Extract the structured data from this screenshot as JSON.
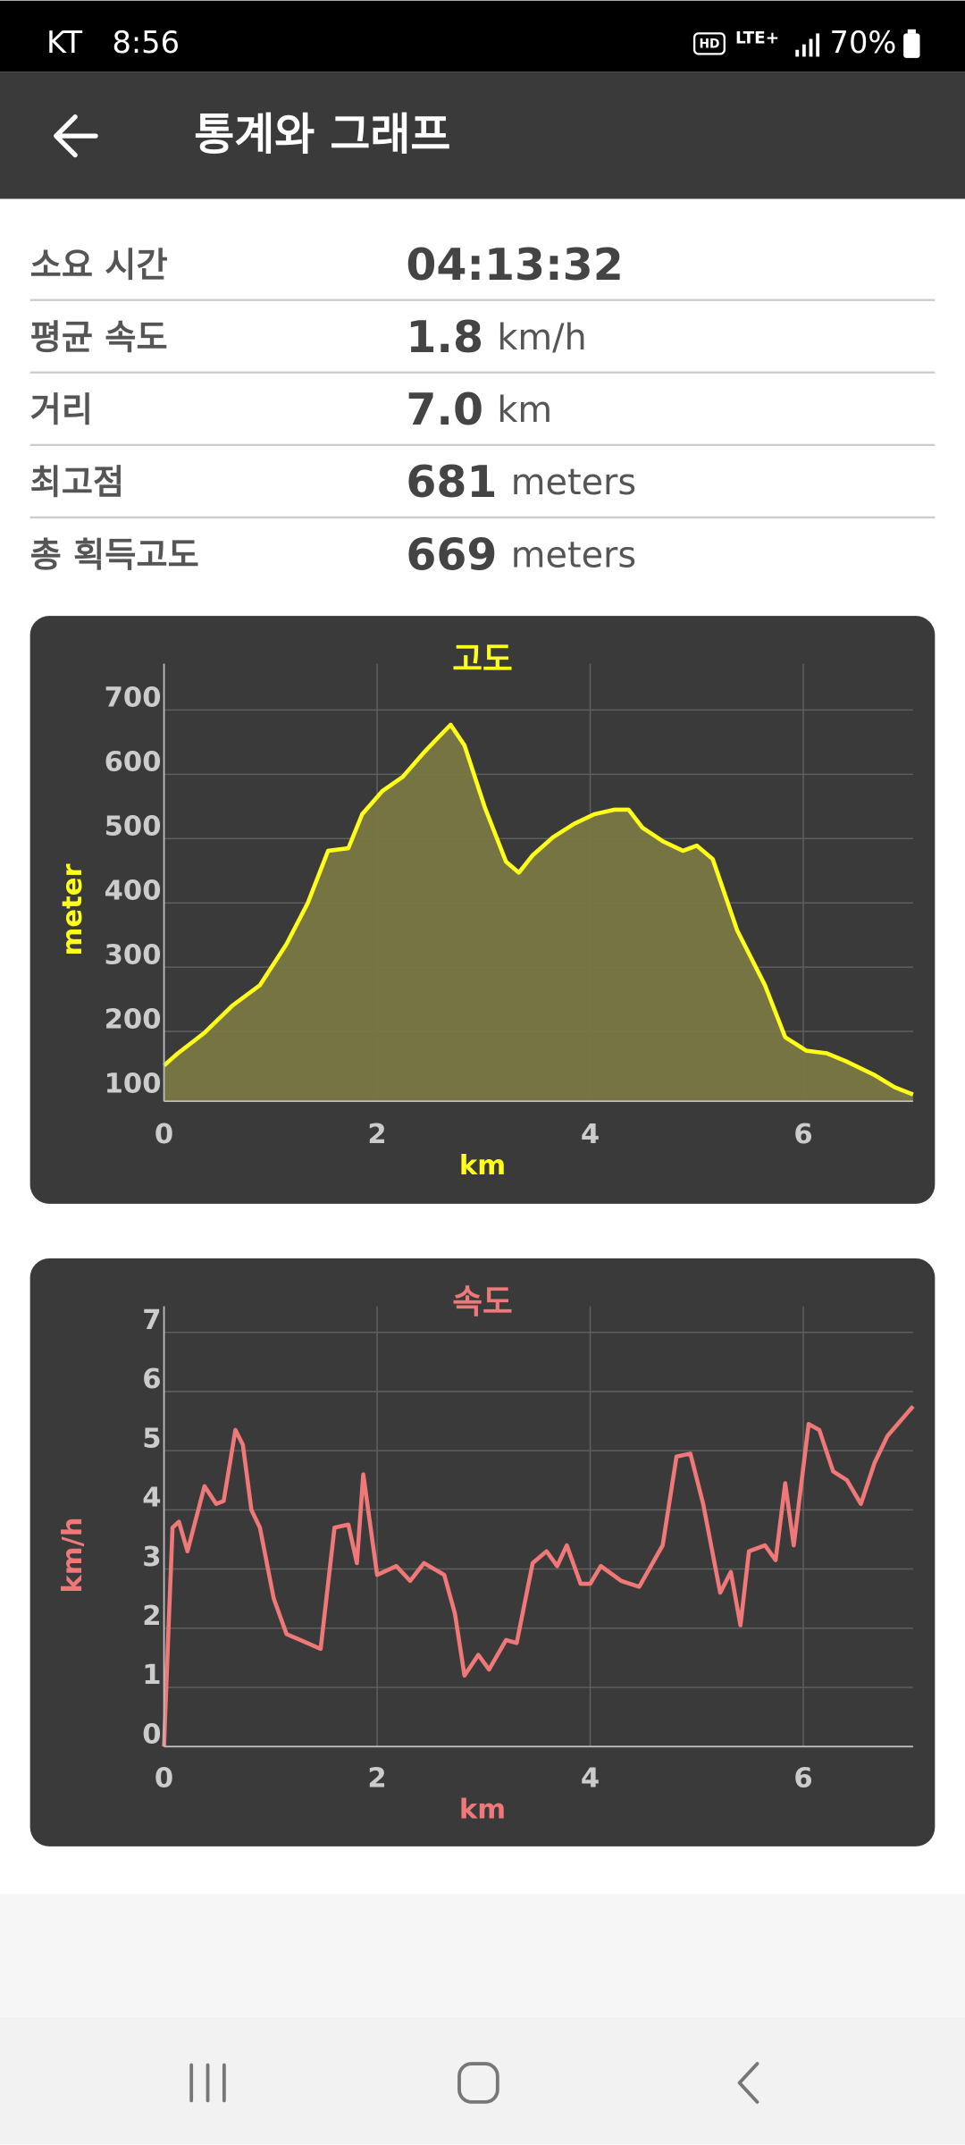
{
  "status": {
    "carrier": "KT",
    "time": "8:56",
    "hd": "HD",
    "network": "LTE+",
    "battery": "70%"
  },
  "header": {
    "title": "통계와 그래프"
  },
  "stats": [
    {
      "label": "소요 시간",
      "value": "04:13:32",
      "unit": ""
    },
    {
      "label": "평균 속도",
      "value": "1.8",
      "unit": "km/h"
    },
    {
      "label": "거리",
      "value": "7.0",
      "unit": "km"
    },
    {
      "label": "최고점",
      "value": "681",
      "unit": "meters"
    },
    {
      "label": "총 획득고도",
      "value": "669",
      "unit": "meters"
    }
  ],
  "chart_data": [
    {
      "type": "area",
      "title": "고도",
      "xlabel": "km",
      "ylabel": "meter",
      "color": "#ffff1a",
      "fill": "#7a7744",
      "x": [
        0,
        0.13,
        0.38,
        0.64,
        0.9,
        1.15,
        1.35,
        1.54,
        1.73,
        1.86,
        2.05,
        2.24,
        2.44,
        2.56,
        2.69,
        2.82,
        3.01,
        3.21,
        3.33,
        3.46,
        3.65,
        3.85,
        4.04,
        4.23,
        4.36,
        4.49,
        4.68,
        4.87,
        5.0,
        5.15,
        5.38,
        5.64,
        5.83,
        6.03,
        6.22,
        6.41,
        6.67,
        6.86,
        7.03
      ],
      "values": [
        147,
        166,
        198,
        240,
        272,
        336,
        400,
        481,
        485,
        538,
        574,
        596,
        634,
        655,
        677,
        645,
        549,
        464,
        447,
        474,
        502,
        523,
        538,
        545,
        545,
        517,
        496,
        481,
        489,
        468,
        357,
        272,
        191,
        170,
        166,
        153,
        132,
        113,
        102
      ],
      "xlim": [
        0,
        7.03
      ],
      "ylim": [
        91.5,
        772
      ],
      "xticks": [
        0,
        2,
        4,
        6
      ],
      "yticks": [
        100,
        200,
        300,
        400,
        500,
        600,
        700
      ],
      "grid": true
    },
    {
      "type": "line",
      "title": "속도",
      "xlabel": "km",
      "ylabel": "km/h",
      "color": "#f07878",
      "x": [
        0,
        0.04,
        0.08,
        0.14,
        0.22,
        0.38,
        0.49,
        0.56,
        0.67,
        0.74,
        0.82,
        0.9,
        1.03,
        1.15,
        1.28,
        1.47,
        1.6,
        1.73,
        1.81,
        1.87,
        2.0,
        2.18,
        2.31,
        2.44,
        2.63,
        2.73,
        2.82,
        2.95,
        3.05,
        3.21,
        3.31,
        3.46,
        3.59,
        3.69,
        3.78,
        3.91,
        4.0,
        4.1,
        4.29,
        4.46,
        4.68,
        4.81,
        4.94,
        5.06,
        5.22,
        5.32,
        5.41,
        5.49,
        5.64,
        5.74,
        5.83,
        5.91,
        6.05,
        6.15,
        6.28,
        6.41,
        6.54,
        6.67,
        6.79,
        7.03
      ],
      "values": [
        0,
        1.9,
        3.7,
        3.8,
        3.3,
        4.4,
        4.1,
        4.15,
        5.35,
        5.1,
        4.0,
        3.7,
        2.5,
        1.9,
        1.8,
        1.65,
        3.7,
        3.75,
        3.1,
        4.6,
        2.9,
        3.05,
        2.8,
        3.1,
        2.9,
        2.25,
        1.2,
        1.55,
        1.3,
        1.8,
        1.75,
        3.1,
        3.3,
        3.05,
        3.4,
        2.75,
        2.75,
        3.05,
        2.8,
        2.7,
        3.4,
        4.9,
        4.95,
        4.1,
        2.6,
        2.95,
        2.05,
        3.3,
        3.4,
        3.15,
        4.45,
        3.4,
        5.45,
        5.35,
        4.65,
        4.5,
        4.1,
        4.8,
        5.25,
        5.75
      ],
      "xlim": [
        0,
        7.03
      ],
      "ylim": [
        0,
        7.44
      ],
      "xticks": [
        0,
        2,
        4,
        6
      ],
      "yticks": [
        0,
        1,
        2,
        3,
        4,
        5,
        6,
        7
      ],
      "grid": true
    }
  ]
}
